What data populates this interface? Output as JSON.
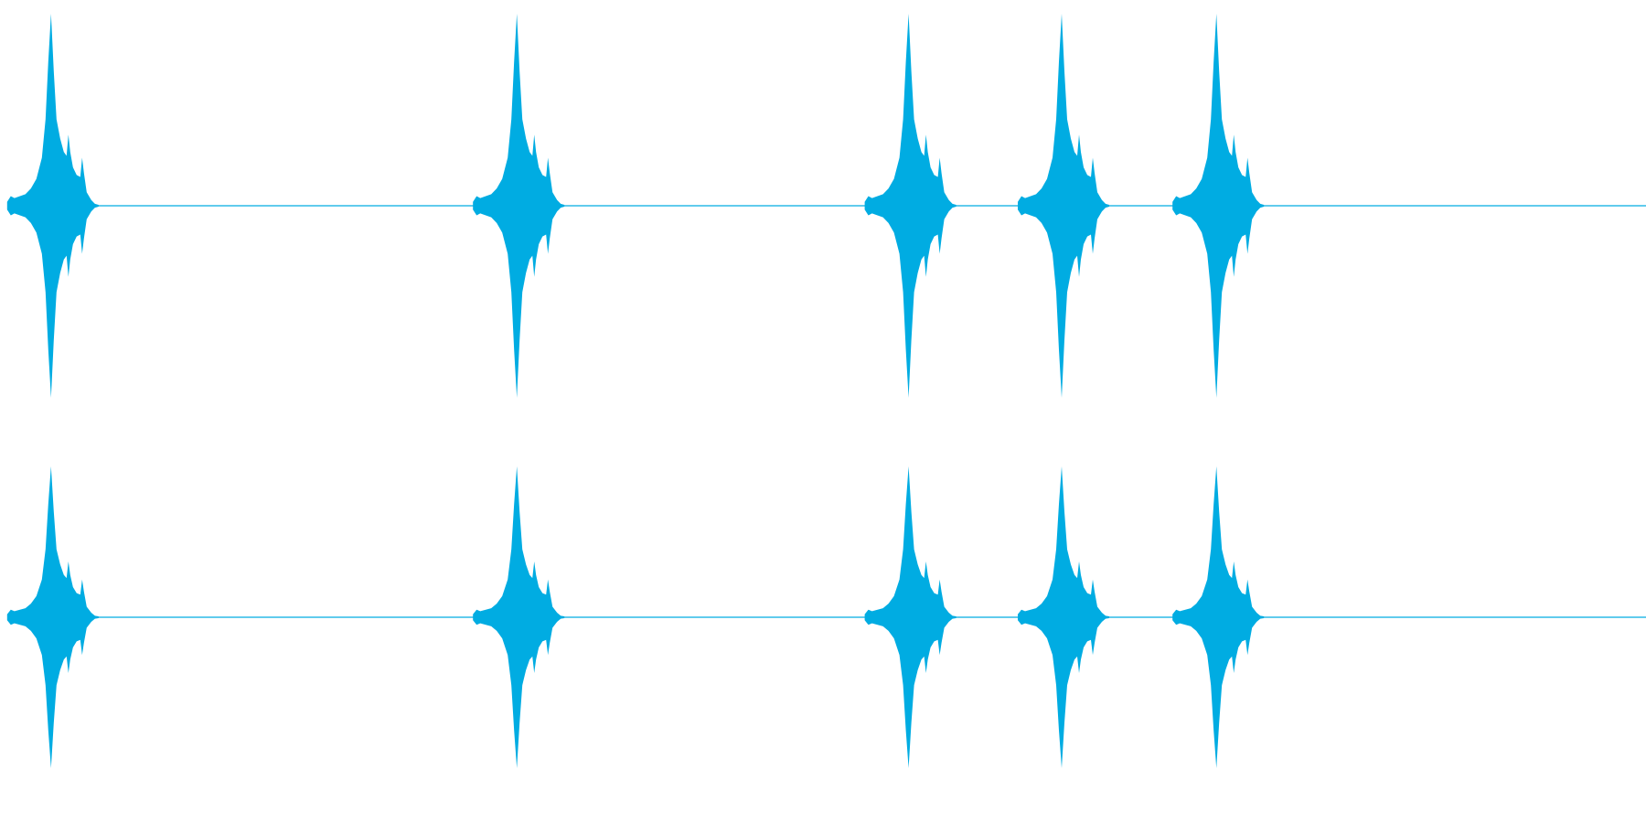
{
  "colors": {
    "waveform": "#00ace2",
    "background": "#ffffff"
  },
  "chart_data": {
    "type": "area",
    "description_visible_text": "",
    "channels": [
      {
        "name": "",
        "amplitude_range": [
          -1,
          1
        ],
        "bursts": [
          {
            "x": 0.031
          },
          {
            "x": 0.314
          },
          {
            "x": 0.552
          },
          {
            "x": 0.645
          },
          {
            "x": 0.739
          }
        ]
      },
      {
        "name": "",
        "amplitude_range": [
          -1,
          1
        ],
        "bursts": [
          {
            "x": 0.031
          },
          {
            "x": 0.314
          },
          {
            "x": 0.552
          },
          {
            "x": 0.645
          },
          {
            "x": 0.739
          }
        ]
      }
    ],
    "x_range": [
      0,
      1
    ],
    "grid": false,
    "legend": "none"
  }
}
